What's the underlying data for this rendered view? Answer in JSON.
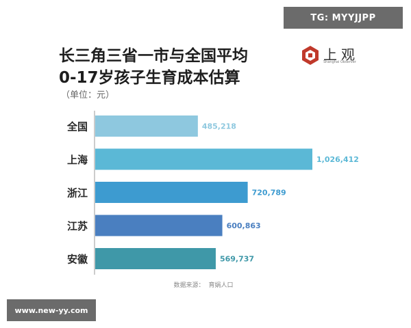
{
  "watermark_top": "TG: MYYJJPP",
  "watermark_bottom": "www.new-yy.com",
  "title_line1": "长三角三省一市与全国平均",
  "title_line2": "0-17岁孩子生育成本估算",
  "unit": "（单位：元）",
  "logo": {
    "text": "上观",
    "sub": "Shanghai Observer",
    "color": "#c0392b"
  },
  "source": {
    "label": "数据来源：",
    "name": "育娲人口"
  },
  "chart_data": {
    "type": "bar",
    "orientation": "horizontal",
    "title": "长三角三省一市与全国平均 0-17岁孩子生育成本估算",
    "unit": "（单位：元）",
    "categories": [
      "全国",
      "上海",
      "浙江",
      "江苏",
      "安徽"
    ],
    "values": [
      485218,
      1026412,
      720789,
      600863,
      569737
    ],
    "value_labels": [
      "485,218",
      "1,026,412",
      "720,789",
      "600,863",
      "569,737"
    ],
    "colors": [
      "#8ec8df",
      "#5bb8d6",
      "#3d9bd0",
      "#4a7fc0",
      "#3f98a8"
    ],
    "xlim": [
      0,
      1026412
    ],
    "grid": false
  }
}
